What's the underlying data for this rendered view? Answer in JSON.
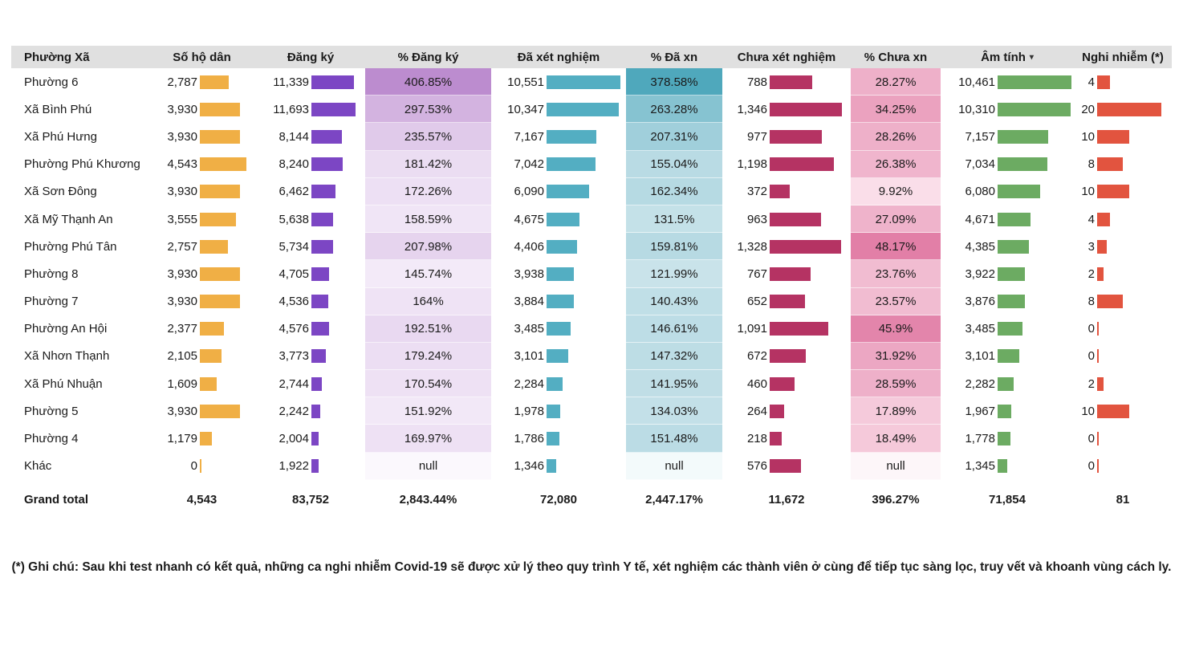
{
  "labels": {
    "grand_total": "Grand total"
  },
  "note": "(*) Ghi chú: Sau khi test nhanh có kết quả, những ca nghi nhiễm Covid-19 sẽ được xử lý theo quy trình Y tế, xét nghiệm các thành viên ở cùng để tiếp tục sàng lọc, truy vết và khoanh vùng cách ly.",
  "colors": {
    "header_bg": "#E0E0E0",
    "text": "#1A1A1A",
    "bar_so_ho_dan": "#F0AF45",
    "bar_dang_ky": "#7C46C4",
    "bar_da_xet_nghiem": "#53AEC2",
    "bar_chua_xet_nghiem": "#B53363",
    "bar_am_tinh": "#6CAB62",
    "bar_nghi_nhiem": "#E2543F"
  },
  "columns": [
    {
      "label": "Phường Xã",
      "kind": "name"
    },
    {
      "label": "Số hộ dân",
      "kind": "bar",
      "series": 0,
      "bar_color": "#F0AF45"
    },
    {
      "label": "Đăng ký",
      "kind": "bar",
      "series": 1,
      "bar_color": "#7C46C4"
    },
    {
      "label": "% Đăng ký",
      "kind": "pct",
      "series": 2,
      "scale": {
        "light": "#F3EAF8",
        "dark": "#BC8CCF",
        "null_color": "#FBF8FD"
      }
    },
    {
      "label": "Đã xét nghiệm",
      "kind": "bar",
      "series": 3,
      "bar_color": "#53AEC2"
    },
    {
      "label": "% Đã xn",
      "kind": "pct",
      "series": 4,
      "scale": {
        "light": "#C9E3EA",
        "dark": "#4FA8BC",
        "null_color": "#F3FAFB"
      }
    },
    {
      "label": "Chưa xét nghiệm",
      "kind": "bar",
      "series": 5,
      "bar_color": "#B53363"
    },
    {
      "label": "% Chưa xn",
      "kind": "pct",
      "series": 6,
      "scale": {
        "light": "#FADEE9",
        "dark": "#E27FA7",
        "null_color": "#FDF6F9"
      }
    },
    {
      "label": "Âm tính",
      "kind": "bar",
      "series": 7,
      "bar_color": "#6CAB62",
      "sorted": "desc"
    },
    {
      "label": "Nghi nhiễm (*)",
      "kind": "bar",
      "series": 8,
      "bar_color": "#E2543F"
    }
  ],
  "chart_data": {
    "type": "table",
    "title": "",
    "categories": [
      "Phường 6",
      "Xã Bình Phú",
      "Xã Phú Hưng",
      "Phường Phú Khương",
      "Xã Sơn Đông",
      "Xã Mỹ Thạnh An",
      "Phường Phú Tân",
      "Phường 8",
      "Phường 7",
      "Phường An Hội",
      "Xã Nhơn Thạnh",
      "Xã Phú Nhuận",
      "Phường 5",
      "Phường 4",
      "Khác"
    ],
    "series": [
      {
        "name": "Số hộ dân",
        "values": [
          2787,
          3930,
          3930,
          4543,
          3930,
          3555,
          2757,
          3930,
          3930,
          2377,
          2105,
          1609,
          3930,
          1179,
          0
        ]
      },
      {
        "name": "Đăng ký",
        "values": [
          11339,
          11693,
          8144,
          8240,
          6462,
          5638,
          5734,
          4705,
          4536,
          4576,
          3773,
          2744,
          2242,
          2004,
          1922
        ]
      },
      {
        "name": "% Đăng ký",
        "values": [
          406.85,
          297.53,
          235.57,
          181.42,
          172.26,
          158.59,
          207.98,
          145.74,
          164,
          192.51,
          179.24,
          170.54,
          151.92,
          169.97,
          null
        ]
      },
      {
        "name": "Đã xét nghiệm",
        "values": [
          10551,
          10347,
          7167,
          7042,
          6090,
          4675,
          4406,
          3938,
          3884,
          3485,
          3101,
          2284,
          1978,
          1786,
          1346
        ]
      },
      {
        "name": "% Đã xn",
        "values": [
          378.58,
          263.28,
          207.31,
          155.04,
          162.34,
          131.5,
          159.81,
          121.99,
          140.43,
          146.61,
          147.32,
          141.95,
          134.03,
          151.48,
          null
        ]
      },
      {
        "name": "Chưa xét nghiệm",
        "values": [
          788,
          1346,
          977,
          1198,
          372,
          963,
          1328,
          767,
          652,
          1091,
          672,
          460,
          264,
          218,
          576
        ]
      },
      {
        "name": "% Chưa xn",
        "values": [
          28.27,
          34.25,
          28.26,
          26.38,
          9.92,
          27.09,
          48.17,
          23.76,
          23.57,
          45.9,
          31.92,
          28.59,
          17.89,
          18.49,
          null
        ]
      },
      {
        "name": "Âm tính",
        "values": [
          10461,
          10310,
          7157,
          7034,
          6080,
          4671,
          4385,
          3922,
          3876,
          3485,
          3101,
          2282,
          1967,
          1778,
          1345
        ]
      },
      {
        "name": "Nghi nhiễm (*)",
        "values": [
          4,
          20,
          10,
          8,
          10,
          4,
          3,
          2,
          8,
          0,
          0,
          2,
          10,
          0,
          0
        ]
      }
    ],
    "grand_total": [
      4543,
      83752,
      2843.44,
      72080,
      2447.17,
      11672,
      396.27,
      71854,
      81
    ],
    "legend_position": "none",
    "grid": false
  }
}
